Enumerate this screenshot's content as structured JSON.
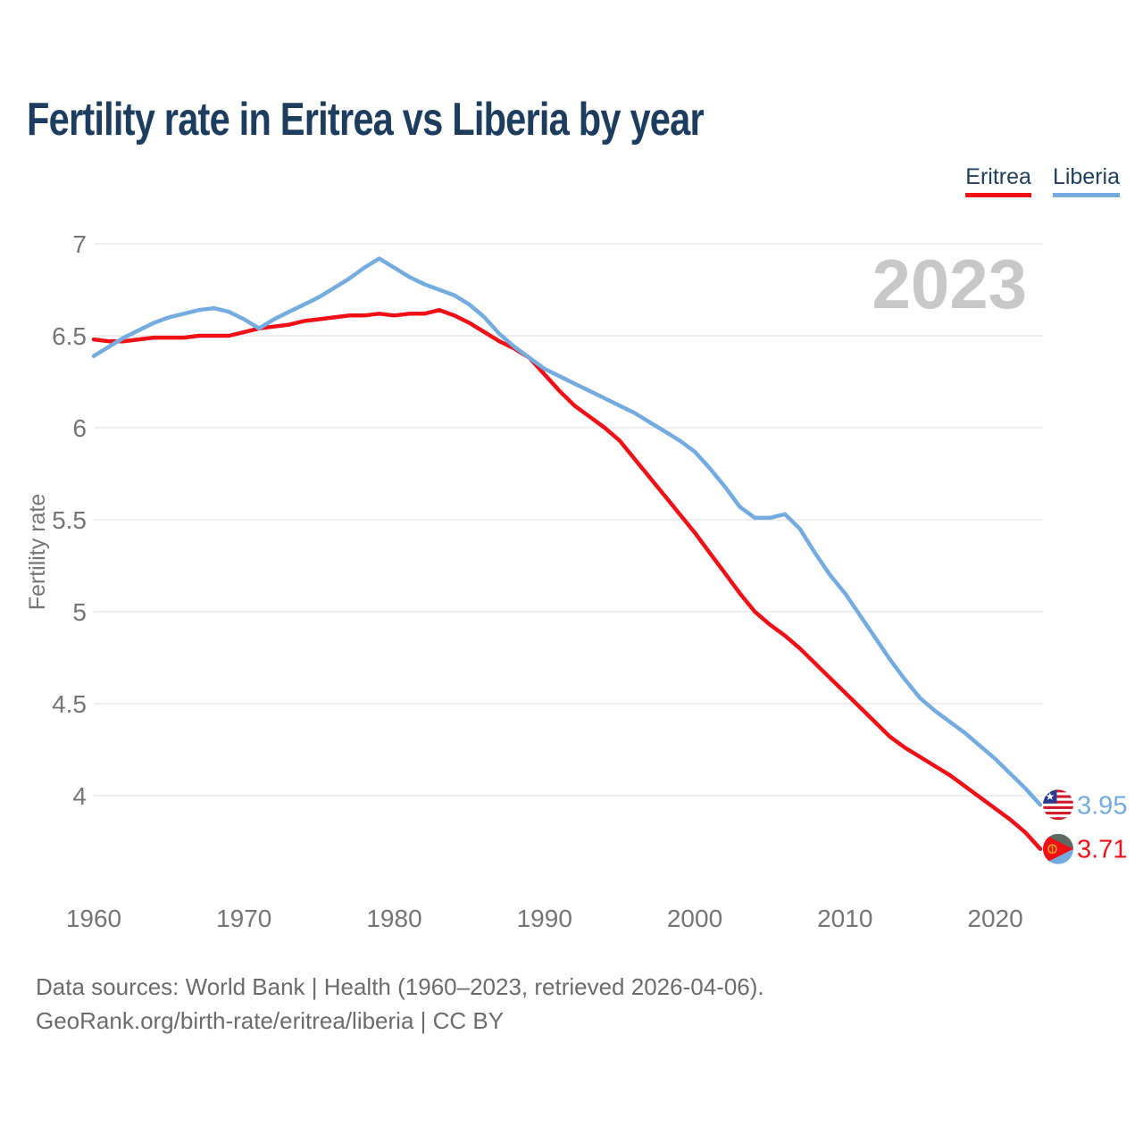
{
  "title": "Fertility rate in Eritrea vs Liberia by year",
  "watermark": "2023",
  "legend": {
    "items": [
      {
        "label": "Eritrea",
        "color": "#f01118"
      },
      {
        "label": "Liberia",
        "color": "#74ace0"
      }
    ]
  },
  "chart_data": {
    "type": "line",
    "title": "Fertility rate in Eritrea vs Liberia by year",
    "xlabel": "",
    "ylabel": "Fertility rate",
    "ylim": [
      3.5,
      7.1
    ],
    "xlim": [
      1960,
      2023
    ],
    "yticks": [
      7,
      6.5,
      6,
      5.5,
      5,
      4.5,
      4
    ],
    "xticks": [
      1960,
      1970,
      1980,
      1990,
      2000,
      2010,
      2020
    ],
    "grid": "horizontal",
    "legend_position": "top-right",
    "x": [
      1960,
      1961,
      1962,
      1963,
      1964,
      1965,
      1966,
      1967,
      1968,
      1969,
      1970,
      1971,
      1972,
      1973,
      1974,
      1975,
      1976,
      1977,
      1978,
      1979,
      1980,
      1981,
      1982,
      1983,
      1984,
      1985,
      1986,
      1987,
      1988,
      1989,
      1990,
      1991,
      1992,
      1993,
      1994,
      1995,
      1996,
      1997,
      1998,
      1999,
      2000,
      2001,
      2002,
      2003,
      2004,
      2005,
      2006,
      2007,
      2008,
      2009,
      2010,
      2011,
      2012,
      2013,
      2014,
      2015,
      2016,
      2017,
      2018,
      2019,
      2020,
      2021,
      2022,
      2023
    ],
    "series": [
      {
        "name": "Eritrea",
        "color": "#f01118",
        "end_label": "3.71",
        "flag": "eritrea-flag",
        "values": [
          6.48,
          6.47,
          6.47,
          6.48,
          6.49,
          6.49,
          6.49,
          6.5,
          6.5,
          6.5,
          6.52,
          6.54,
          6.55,
          6.56,
          6.58,
          6.59,
          6.6,
          6.61,
          6.61,
          6.62,
          6.61,
          6.62,
          6.62,
          6.64,
          6.61,
          6.57,
          6.52,
          6.47,
          6.43,
          6.38,
          6.29,
          6.2,
          6.12,
          6.06,
          6.0,
          5.93,
          5.83,
          5.73,
          5.63,
          5.53,
          5.43,
          5.32,
          5.21,
          5.1,
          5.0,
          4.93,
          4.87,
          4.8,
          4.72,
          4.64,
          4.56,
          4.48,
          4.4,
          4.32,
          4.26,
          4.21,
          4.16,
          4.11,
          4.05,
          3.99,
          3.93,
          3.87,
          3.8,
          3.71
        ]
      },
      {
        "name": "Liberia",
        "color": "#74ace0",
        "end_label": "3.95",
        "flag": "liberia-flag",
        "values": [
          6.39,
          6.44,
          6.49,
          6.53,
          6.57,
          6.6,
          6.62,
          6.64,
          6.65,
          6.63,
          6.59,
          6.54,
          6.59,
          6.63,
          6.67,
          6.71,
          6.76,
          6.81,
          6.87,
          6.92,
          6.87,
          6.82,
          6.78,
          6.75,
          6.72,
          6.67,
          6.6,
          6.51,
          6.44,
          6.38,
          6.32,
          6.28,
          6.24,
          6.2,
          6.16,
          6.12,
          6.08,
          6.03,
          5.98,
          5.93,
          5.87,
          5.78,
          5.68,
          5.57,
          5.51,
          5.51,
          5.53,
          5.45,
          5.32,
          5.2,
          5.1,
          4.98,
          4.86,
          4.74,
          4.63,
          4.53,
          4.46,
          4.4,
          4.34,
          4.27,
          4.2,
          4.12,
          4.04,
          3.95
        ]
      }
    ]
  },
  "footer": {
    "line1": "Data sources: World Bank | Health (1960–2023, retrieved 2026-04-06).",
    "line2": "GeoRank.org/birth-rate/eritrea/liberia | CC BY"
  }
}
